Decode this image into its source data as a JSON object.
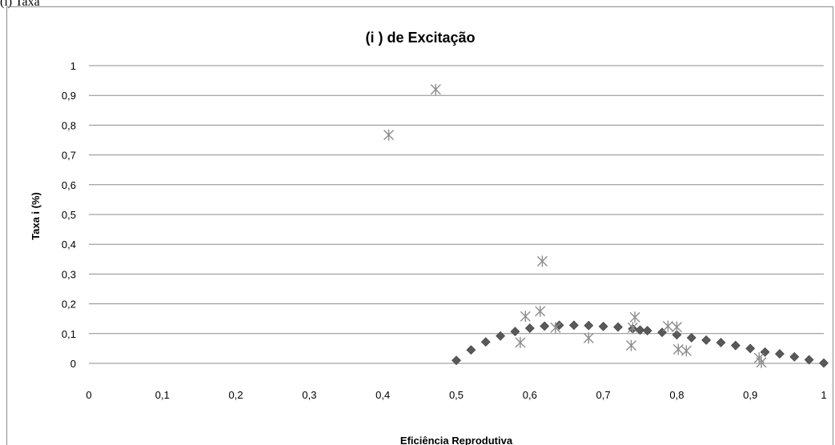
{
  "panel_label": "(i) Taxa",
  "chart_data": {
    "type": "scatter",
    "title": "(i ) de Excitação",
    "xlabel": "Eficiência Reprodutiva",
    "ylabel": "Taxa i (%)",
    "xlim": [
      0,
      1
    ],
    "ylim": [
      0,
      1
    ],
    "x_ticks": [
      "0",
      "0,1",
      "0,2",
      "0,3",
      "0,4",
      "0,5",
      "0,6",
      "0,7",
      "0,8",
      "0,9",
      "1"
    ],
    "y_ticks": [
      "0",
      "0,1",
      "0,2",
      "0,3",
      "0,4",
      "0,5",
      "0,6",
      "0,7",
      "0,8",
      "0,9",
      "1"
    ],
    "grid": "horizontal",
    "legend": "none",
    "series": [
      {
        "marker": "diamond",
        "color": "#595959",
        "points": [
          [
            0.5,
            0.01
          ],
          [
            0.52,
            0.045
          ],
          [
            0.54,
            0.072
          ],
          [
            0.56,
            0.092
          ],
          [
            0.58,
            0.107
          ],
          [
            0.6,
            0.118
          ],
          [
            0.62,
            0.125
          ],
          [
            0.64,
            0.128
          ],
          [
            0.66,
            0.128
          ],
          [
            0.68,
            0.127
          ],
          [
            0.7,
            0.124
          ],
          [
            0.72,
            0.122
          ],
          [
            0.74,
            0.116
          ],
          [
            0.75,
            0.112
          ],
          [
            0.76,
            0.11
          ],
          [
            0.78,
            0.104
          ],
          [
            0.8,
            0.096
          ],
          [
            0.82,
            0.086
          ],
          [
            0.84,
            0.078
          ],
          [
            0.86,
            0.07
          ],
          [
            0.88,
            0.06
          ],
          [
            0.9,
            0.05
          ],
          [
            0.92,
            0.038
          ],
          [
            0.94,
            0.032
          ],
          [
            0.96,
            0.022
          ],
          [
            0.98,
            0.012
          ],
          [
            1.0,
            0.001
          ]
        ]
      },
      {
        "marker": "asterisk",
        "color": "#8c8c8c",
        "points": [
          [
            0.408,
            0.767
          ],
          [
            0.472,
            0.92
          ],
          [
            0.617,
            0.343
          ],
          [
            0.614,
            0.175
          ],
          [
            0.594,
            0.158
          ],
          [
            0.587,
            0.07
          ],
          [
            0.635,
            0.12
          ],
          [
            0.68,
            0.085
          ],
          [
            0.738,
            0.06
          ],
          [
            0.743,
            0.155
          ],
          [
            0.74,
            0.12
          ],
          [
            0.788,
            0.125
          ],
          [
            0.8,
            0.122
          ],
          [
            0.802,
            0.047
          ],
          [
            0.813,
            0.042
          ],
          [
            0.912,
            0.018
          ],
          [
            0.915,
            0.003
          ]
        ]
      }
    ]
  }
}
